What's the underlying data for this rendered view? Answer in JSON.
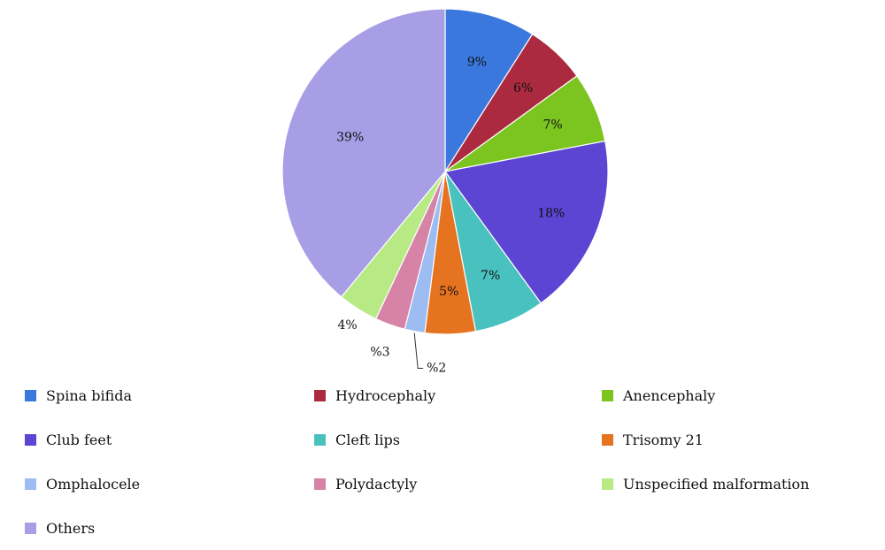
{
  "chart_data": {
    "type": "pie",
    "title": "",
    "start_angle_deg": 0,
    "direction": "clockwise",
    "legend_position": "bottom",
    "slices": [
      {
        "label": "Spina bifida",
        "value": 9,
        "display": "9%",
        "color": "#3a78de"
      },
      {
        "label": "Hydrocephaly",
        "value": 6,
        "display": "6%",
        "color": "#ab2a3f"
      },
      {
        "label": "Anencephaly",
        "value": 7,
        "display": "7%",
        "color": "#7cc41f"
      },
      {
        "label": "Club feet",
        "value": 18,
        "display": "18%",
        "color": "#5b45d2"
      },
      {
        "label": "Cleft lips",
        "value": 7,
        "display": "7%",
        "color": "#49c2bf"
      },
      {
        "label": "Trisomy 21",
        "value": 5,
        "display": "5%",
        "color": "#e6731f"
      },
      {
        "label": "Omphalocele",
        "value": 2,
        "display": "%2",
        "color": "#9dbcf2"
      },
      {
        "label": "Polydactyly",
        "value": 3,
        "display": "%3",
        "color": "#d683a7"
      },
      {
        "label": "Unspecified malformation",
        "value": 4,
        "display": "4%",
        "color": "#b7ea85"
      },
      {
        "label": "Others",
        "value": 39,
        "display": "39%",
        "color": "#a79ee6"
      }
    ]
  }
}
